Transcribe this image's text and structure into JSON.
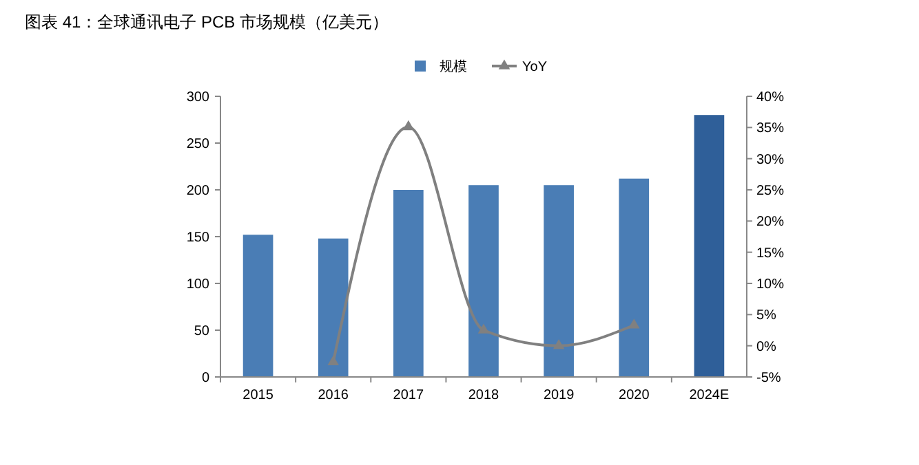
{
  "chart_data": {
    "type": "bar",
    "title": "图表 41：全球通讯电子 PCB 市场规模（亿美元）",
    "categories": [
      "2015",
      "2016",
      "2017",
      "2018",
      "2019",
      "2020",
      "2024E"
    ],
    "series": [
      {
        "name": "规模",
        "color": "#4a7db5",
        "colors": [
          "#4a7db5",
          "#4a7db5",
          "#4a7db5",
          "#4a7db5",
          "#4a7db5",
          "#4a7db5",
          "#2f5f99"
        ],
        "values": [
          152,
          148,
          200,
          205,
          205,
          212,
          280
        ]
      },
      {
        "name": "YoY",
        "type": "line",
        "axis": "y2",
        "color": "#808080",
        "marker": "triangle",
        "values": [
          null,
          -2.6,
          35.1,
          2.5,
          0,
          3.3,
          null
        ]
      }
    ],
    "ylim": [
      0,
      300
    ],
    "yticks": [
      0,
      50,
      100,
      150,
      200,
      250,
      300
    ],
    "y2lim": [
      -5,
      40
    ],
    "y2ticks": [
      {
        "value": -5,
        "label": "-5%"
      },
      {
        "value": 0,
        "label": "0%"
      },
      {
        "value": 5,
        "label": "5%"
      },
      {
        "value": 10,
        "label": "10%"
      },
      {
        "value": 15,
        "label": "15%"
      },
      {
        "value": 20,
        "label": "20%"
      },
      {
        "value": 25,
        "label": "25%"
      },
      {
        "value": 30,
        "label": "30%"
      },
      {
        "value": 35,
        "label": "35%"
      },
      {
        "value": 40,
        "label": "40%"
      }
    ],
    "legend": "top",
    "grid": false
  }
}
